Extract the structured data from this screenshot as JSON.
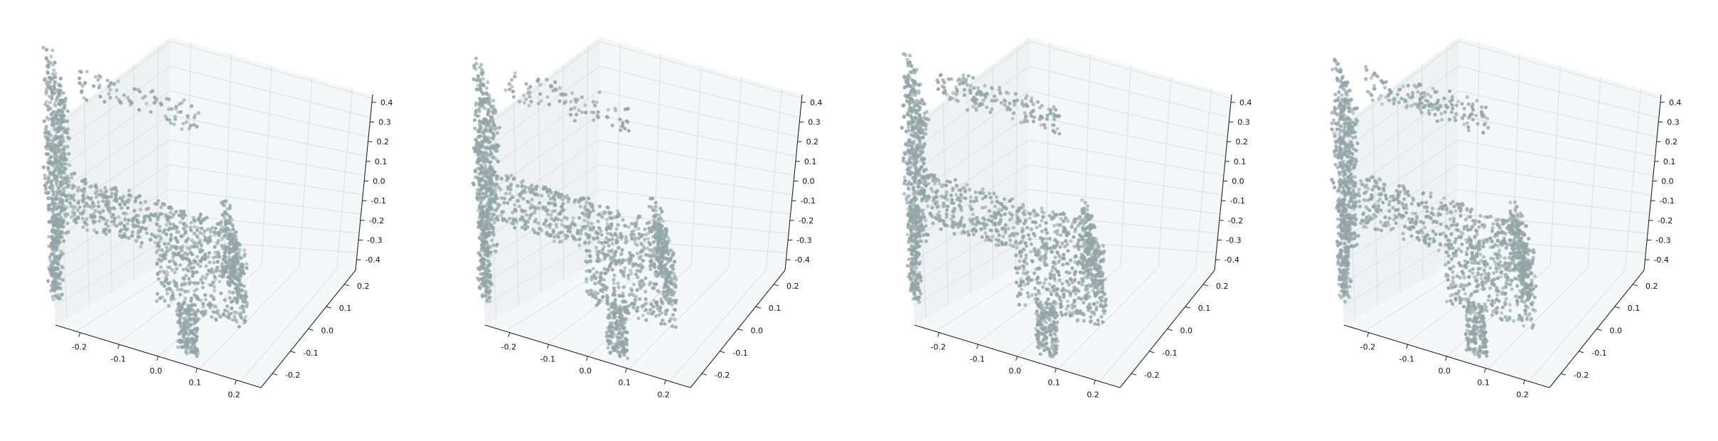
{
  "colors": {
    "point": "#93a5a7",
    "pane_back": "#f4f7f8",
    "pane_left": "#eef2f3",
    "pane_floor": "#f5f8f8",
    "grid": "#d9dedf",
    "axis": "#222222"
  },
  "chart_data": [
    {
      "type": "scatter",
      "projection": "3d",
      "title": "",
      "variant": 0,
      "xlim": [
        -0.25,
        0.25
      ],
      "ylim": [
        -0.25,
        0.25
      ],
      "zlim": [
        -0.45,
        0.45
      ],
      "x_ticks": [
        "-0.2",
        "-0.1",
        "0.0",
        "0.1",
        "0.2"
      ],
      "y_ticks": [
        "-0.2",
        "-0.1",
        "0.0",
        "0.1",
        "0.2"
      ],
      "z_ticks": [
        "-0.4",
        "-0.3",
        "-0.2",
        "-0.1",
        "0.0",
        "0.1",
        "0.2",
        "0.3",
        "0.4"
      ],
      "grid": true
    },
    {
      "type": "scatter",
      "projection": "3d",
      "title": "",
      "variant": 1,
      "xlim": [
        -0.25,
        0.25
      ],
      "ylim": [
        -0.25,
        0.25
      ],
      "zlim": [
        -0.45,
        0.45
      ],
      "x_ticks": [
        "-0.2",
        "-0.1",
        "0.0",
        "0.1",
        "0.2"
      ],
      "y_ticks": [
        "-0.2",
        "-0.1",
        "0.0",
        "0.1",
        "0.2"
      ],
      "z_ticks": [
        "-0.4",
        "-0.3",
        "-0.2",
        "-0.1",
        "0.0",
        "0.1",
        "0.2",
        "0.3",
        "0.4"
      ],
      "grid": true
    },
    {
      "type": "scatter",
      "projection": "3d",
      "title": "",
      "variant": 2,
      "xlim": [
        -0.25,
        0.25
      ],
      "ylim": [
        -0.25,
        0.25
      ],
      "zlim": [
        -0.45,
        0.45
      ],
      "x_ticks": [
        "-0.2",
        "-0.1",
        "0.0",
        "0.1",
        "0.2"
      ],
      "y_ticks": [
        "-0.2",
        "-0.1",
        "0.0",
        "0.1",
        "0.2"
      ],
      "z_ticks": [
        "-0.4",
        "-0.3",
        "-0.2",
        "-0.1",
        "0.0",
        "0.1",
        "0.2",
        "0.3",
        "0.4"
      ],
      "grid": true
    },
    {
      "type": "scatter",
      "projection": "3d",
      "title": "",
      "variant": 3,
      "xlim": [
        -0.25,
        0.25
      ],
      "ylim": [
        -0.25,
        0.25
      ],
      "zlim": [
        -0.45,
        0.45
      ],
      "x_ticks": [
        "-0.2",
        "-0.1",
        "0.0",
        "0.1",
        "0.2"
      ],
      "y_ticks": [
        "-0.2",
        "-0.1",
        "0.0",
        "0.1",
        "0.2"
      ],
      "z_ticks": [
        "-0.4",
        "-0.3",
        "-0.2",
        "-0.1",
        "0.0",
        "0.1",
        "0.2",
        "0.3",
        "0.4"
      ],
      "grid": true
    }
  ]
}
